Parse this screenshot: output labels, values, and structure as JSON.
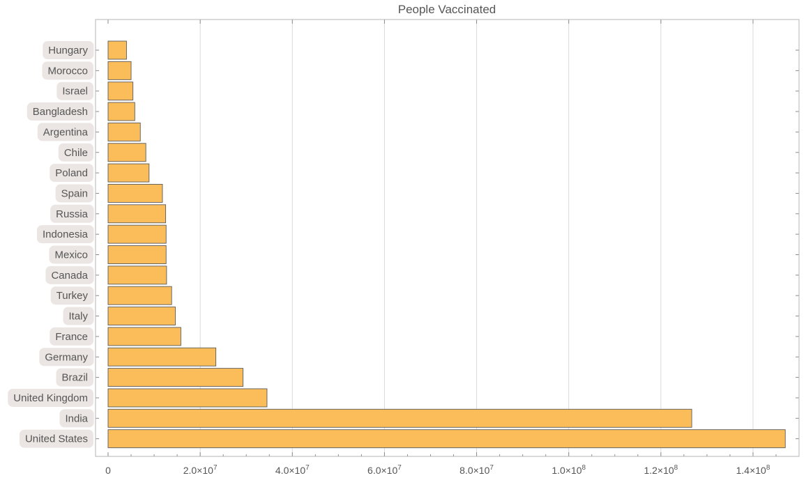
{
  "chart_data": {
    "type": "bar",
    "orientation": "horizontal",
    "title": "People Vaccinated",
    "xlabel": "",
    "ylabel": "",
    "xlim": [
      0,
      150000000
    ],
    "grid": true,
    "colors": {
      "bar": "#fbbd59",
      "bar_edge": "#5a5a5a",
      "label_bg": "#ebe6e3",
      "grid": "#d9d9d9"
    },
    "categories": [
      "United States",
      "India",
      "United Kingdom",
      "Brazil",
      "Germany",
      "France",
      "Italy",
      "Turkey",
      "Canada",
      "Mexico",
      "Indonesia",
      "Russia",
      "Spain",
      "Poland",
      "Chile",
      "Argentina",
      "Bangladesh",
      "Israel",
      "Morocco",
      "Hungary"
    ],
    "values": [
      147000000,
      126700000,
      34500000,
      29300000,
      23400000,
      15800000,
      14600000,
      13800000,
      12700000,
      12600000,
      12600000,
      12500000,
      11800000,
      8900000,
      8200000,
      7000000,
      5800000,
      5400000,
      5000000,
      4000000
    ],
    "x_ticks": [
      {
        "value": 0,
        "mantissa": "0",
        "exp": ""
      },
      {
        "value": 20000000,
        "mantissa": "2.0×10",
        "exp": "7"
      },
      {
        "value": 40000000,
        "mantissa": "4.0×10",
        "exp": "7"
      },
      {
        "value": 60000000,
        "mantissa": "6.0×10",
        "exp": "7"
      },
      {
        "value": 80000000,
        "mantissa": "8.0×10",
        "exp": "7"
      },
      {
        "value": 100000000,
        "mantissa": "1.0×10",
        "exp": "8"
      },
      {
        "value": 120000000,
        "mantissa": "1.2×10",
        "exp": "8"
      },
      {
        "value": 140000000,
        "mantissa": "1.4×10",
        "exp": "8"
      }
    ]
  }
}
